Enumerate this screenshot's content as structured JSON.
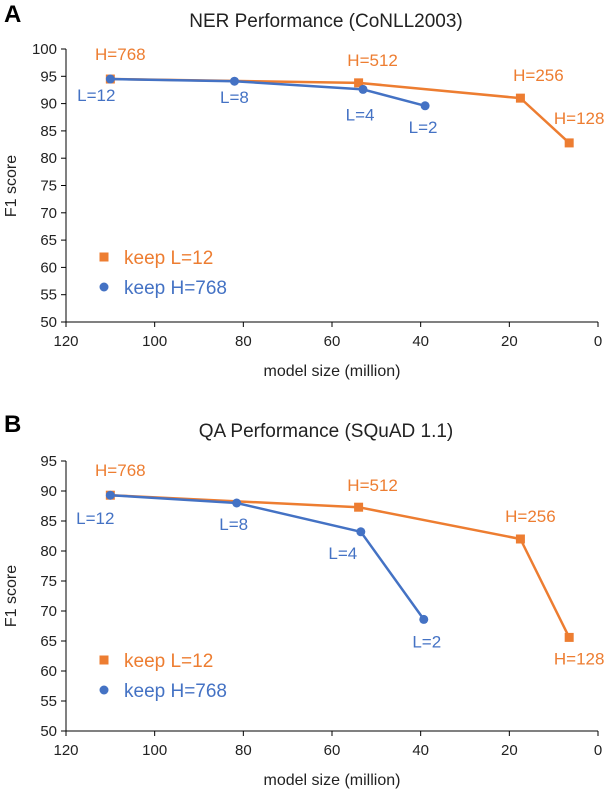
{
  "chart_data": [
    {
      "type": "line",
      "panel": "A",
      "title": "NER Performance (CoNLL2003)",
      "xlabel": "model size (million)",
      "ylabel": "F1 score",
      "xlim": [
        120,
        0
      ],
      "ylim": [
        50,
        100
      ],
      "xticks": [
        120,
        100,
        80,
        60,
        40,
        20,
        0
      ],
      "yticks": [
        50,
        55,
        60,
        65,
        70,
        75,
        80,
        85,
        90,
        95,
        100
      ],
      "legend_position": "left",
      "series": [
        {
          "name": "keep L=12",
          "color": "#ED7D31",
          "marker": "square",
          "x": [
            110,
            54,
            17.5,
            6.5
          ],
          "y": [
            94.5,
            93.8,
            91.0,
            82.8
          ],
          "labels": [
            "H=768",
            "H=512",
            "H=256",
            "H=128"
          ]
        },
        {
          "name": "keep H=768",
          "color": "#4472C4",
          "marker": "circle",
          "x": [
            110,
            82,
            53,
            39
          ],
          "y": [
            94.5,
            94.1,
            92.6,
            89.6
          ],
          "labels": [
            "L=12",
            "L=8",
            "L=4",
            "L=2"
          ]
        }
      ]
    },
    {
      "type": "line",
      "panel": "B",
      "title": "QA Performance (SQuAD 1.1)",
      "xlabel": "model size (million)",
      "ylabel": "F1 score",
      "xlim": [
        120,
        0
      ],
      "ylim": [
        50,
        95
      ],
      "xticks": [
        120,
        100,
        80,
        60,
        40,
        20,
        0
      ],
      "yticks": [
        50,
        55,
        60,
        65,
        70,
        75,
        80,
        85,
        90,
        95
      ],
      "legend_position": "lower-left",
      "series": [
        {
          "name": "keep L=12",
          "color": "#ED7D31",
          "marker": "square",
          "x": [
            110,
            54,
            17.5,
            6.5
          ],
          "y": [
            89.3,
            87.3,
            82.0,
            65.6
          ],
          "labels": [
            "H=768",
            "H=512",
            "H=256",
            "H=128"
          ]
        },
        {
          "name": "keep H=768",
          "color": "#4472C4",
          "marker": "circle",
          "x": [
            110,
            81.5,
            53.5,
            39.3
          ],
          "y": [
            89.3,
            88.0,
            83.2,
            68.6
          ],
          "labels": [
            "L=12",
            "L=8",
            "L=4",
            "L=2"
          ]
        }
      ]
    }
  ]
}
